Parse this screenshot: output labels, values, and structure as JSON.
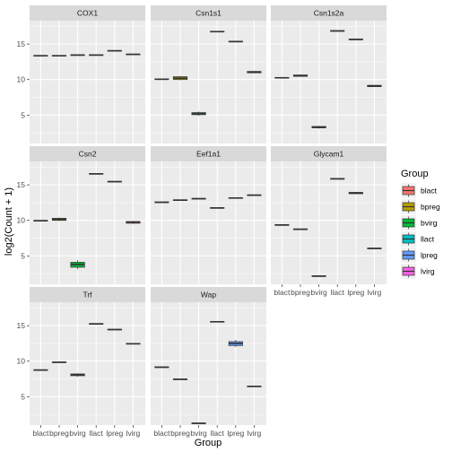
{
  "chart_data": {
    "type": "box",
    "facet": "gene",
    "xlabel": "Group",
    "ylabel": "log2(Count + 1)",
    "categories": [
      "blact",
      "bpreg",
      "bvirg",
      "llact",
      "lpreg",
      "lvirg"
    ],
    "yticks": [
      5,
      10,
      15
    ],
    "ylim": [
      1.0,
      18.3
    ],
    "grid": true,
    "legend": {
      "title": "Group",
      "position": "right",
      "items": [
        "blact",
        "bpreg",
        "bvirg",
        "llact",
        "lpreg",
        "lvirg"
      ]
    },
    "colors": {
      "blact": "#F8766D",
      "bpreg": "#B79F00",
      "bvirg": "#00BA38",
      "llact": "#00BFC4",
      "lpreg": "#619CFF",
      "lvirg": "#F564E3"
    },
    "panels": [
      {
        "name": "COX1",
        "boxes": [
          {
            "group": "blact",
            "min": 13.3,
            "q1": 13.3,
            "median": 13.35,
            "q3": 13.4,
            "max": 13.4
          },
          {
            "group": "bpreg",
            "min": 13.3,
            "q1": 13.3,
            "median": 13.35,
            "q3": 13.4,
            "max": 13.4
          },
          {
            "group": "bvirg",
            "min": 13.4,
            "q1": 13.4,
            "median": 13.45,
            "q3": 13.5,
            "max": 13.5
          },
          {
            "group": "llact",
            "min": 13.4,
            "q1": 13.4,
            "median": 13.45,
            "q3": 13.5,
            "max": 13.5
          },
          {
            "group": "lpreg",
            "min": 14.0,
            "q1": 14.0,
            "median": 14.05,
            "q3": 14.1,
            "max": 14.1
          },
          {
            "group": "lvirg",
            "min": 13.5,
            "q1": 13.5,
            "median": 13.55,
            "q3": 13.6,
            "max": 13.6
          }
        ]
      },
      {
        "name": "Csn1s1",
        "boxes": [
          {
            "group": "blact",
            "min": 10.0,
            "q1": 10.0,
            "median": 10.05,
            "q3": 10.1,
            "max": 10.1
          },
          {
            "group": "bpreg",
            "min": 9.9,
            "q1": 10.0,
            "median": 10.2,
            "q3": 10.4,
            "max": 10.5
          },
          {
            "group": "bvirg",
            "min": 4.9,
            "q1": 5.05,
            "median": 5.2,
            "q3": 5.35,
            "max": 5.5
          },
          {
            "group": "llact",
            "min": 16.7,
            "q1": 16.7,
            "median": 16.75,
            "q3": 16.8,
            "max": 16.8
          },
          {
            "group": "lpreg",
            "min": 15.3,
            "q1": 15.3,
            "median": 15.35,
            "q3": 15.4,
            "max": 15.4
          },
          {
            "group": "lvirg",
            "min": 10.9,
            "q1": 10.95,
            "median": 11.05,
            "q3": 11.15,
            "max": 11.2
          }
        ]
      },
      {
        "name": "Csn1s2a",
        "boxes": [
          {
            "group": "blact",
            "min": 10.2,
            "q1": 10.2,
            "median": 10.25,
            "q3": 10.3,
            "max": 10.3
          },
          {
            "group": "bpreg",
            "min": 10.4,
            "q1": 10.45,
            "median": 10.55,
            "q3": 10.65,
            "max": 10.7
          },
          {
            "group": "bvirg",
            "min": 3.1,
            "q1": 3.2,
            "median": 3.3,
            "q3": 3.4,
            "max": 3.5
          },
          {
            "group": "llact",
            "min": 16.8,
            "q1": 16.8,
            "median": 16.85,
            "q3": 16.9,
            "max": 16.9
          },
          {
            "group": "lpreg",
            "min": 15.6,
            "q1": 15.6,
            "median": 15.65,
            "q3": 15.7,
            "max": 15.7
          },
          {
            "group": "lvirg",
            "min": 9.0,
            "q1": 9.0,
            "median": 9.1,
            "q3": 9.2,
            "max": 9.2
          }
        ]
      },
      {
        "name": "Csn2",
        "boxes": [
          {
            "group": "blact",
            "min": 9.9,
            "q1": 9.9,
            "median": 9.95,
            "q3": 10.0,
            "max": 10.0
          },
          {
            "group": "bpreg",
            "min": 9.9,
            "q1": 10.0,
            "median": 10.15,
            "q3": 10.3,
            "max": 10.4
          },
          {
            "group": "bvirg",
            "min": 3.1,
            "q1": 3.4,
            "median": 3.8,
            "q3": 4.1,
            "max": 4.4
          },
          {
            "group": "llact",
            "min": 16.5,
            "q1": 16.5,
            "median": 16.55,
            "q3": 16.6,
            "max": 16.6
          },
          {
            "group": "lpreg",
            "min": 15.4,
            "q1": 15.4,
            "median": 15.45,
            "q3": 15.5,
            "max": 15.5
          },
          {
            "group": "lvirg",
            "min": 9.5,
            "q1": 9.6,
            "median": 9.7,
            "q3": 9.85,
            "max": 9.9
          }
        ]
      },
      {
        "name": "Eef1a1",
        "boxes": [
          {
            "group": "blact",
            "min": 12.5,
            "q1": 12.5,
            "median": 12.55,
            "q3": 12.6,
            "max": 12.6
          },
          {
            "group": "bpreg",
            "min": 12.8,
            "q1": 12.8,
            "median": 12.85,
            "q3": 12.9,
            "max": 12.9
          },
          {
            "group": "bvirg",
            "min": 13.0,
            "q1": 13.0,
            "median": 13.05,
            "q3": 13.1,
            "max": 13.1
          },
          {
            "group": "llact",
            "min": 11.7,
            "q1": 11.7,
            "median": 11.75,
            "q3": 11.8,
            "max": 11.8
          },
          {
            "group": "lpreg",
            "min": 13.1,
            "q1": 13.1,
            "median": 13.15,
            "q3": 13.2,
            "max": 13.2
          },
          {
            "group": "lvirg",
            "min": 13.5,
            "q1": 13.5,
            "median": 13.55,
            "q3": 13.6,
            "max": 13.6
          }
        ]
      },
      {
        "name": "Glycam1",
        "boxes": [
          {
            "group": "blact",
            "min": 9.3,
            "q1": 9.3,
            "median": 9.35,
            "q3": 9.4,
            "max": 9.4
          },
          {
            "group": "bpreg",
            "min": 8.7,
            "q1": 8.7,
            "median": 8.75,
            "q3": 8.8,
            "max": 8.8
          },
          {
            "group": "bvirg",
            "min": 2.1,
            "q1": 2.1,
            "median": 2.15,
            "q3": 2.2,
            "max": 2.2
          },
          {
            "group": "llact",
            "min": 15.8,
            "q1": 15.8,
            "median": 15.85,
            "q3": 15.9,
            "max": 15.9
          },
          {
            "group": "lpreg",
            "min": 13.7,
            "q1": 13.75,
            "median": 13.85,
            "q3": 13.95,
            "max": 14.0
          },
          {
            "group": "lvirg",
            "min": 6.0,
            "q1": 6.0,
            "median": 6.05,
            "q3": 6.1,
            "max": 6.1
          }
        ]
      },
      {
        "name": "Trf",
        "boxes": [
          {
            "group": "blact",
            "min": 8.7,
            "q1": 8.7,
            "median": 8.75,
            "q3": 8.8,
            "max": 8.8
          },
          {
            "group": "bpreg",
            "min": 9.8,
            "q1": 9.8,
            "median": 9.85,
            "q3": 9.9,
            "max": 9.9
          },
          {
            "group": "bvirg",
            "min": 7.8,
            "q1": 7.95,
            "median": 8.1,
            "q3": 8.2,
            "max": 8.3
          },
          {
            "group": "llact",
            "min": 15.2,
            "q1": 15.2,
            "median": 15.25,
            "q3": 15.3,
            "max": 15.3
          },
          {
            "group": "lpreg",
            "min": 14.4,
            "q1": 14.4,
            "median": 14.45,
            "q3": 14.5,
            "max": 14.5
          },
          {
            "group": "lvirg",
            "min": 12.4,
            "q1": 12.4,
            "median": 12.45,
            "q3": 12.5,
            "max": 12.5
          }
        ]
      },
      {
        "name": "Wap",
        "boxes": [
          {
            "group": "blact",
            "min": 9.1,
            "q1": 9.1,
            "median": 9.15,
            "q3": 9.2,
            "max": 9.2
          },
          {
            "group": "bpreg",
            "min": 7.4,
            "q1": 7.4,
            "median": 7.45,
            "q3": 7.5,
            "max": 7.5
          },
          {
            "group": "bvirg",
            "min": 1.2,
            "q1": 1.2,
            "median": 1.25,
            "q3": 1.3,
            "max": 1.3
          },
          {
            "group": "llact",
            "min": 15.5,
            "q1": 15.5,
            "median": 15.55,
            "q3": 15.6,
            "max": 15.6
          },
          {
            "group": "lpreg",
            "min": 12.0,
            "q1": 12.2,
            "median": 12.5,
            "q3": 12.75,
            "max": 13.0
          },
          {
            "group": "lvirg",
            "min": 6.4,
            "q1": 6.4,
            "median": 6.45,
            "q3": 6.5,
            "max": 6.5
          }
        ]
      }
    ]
  }
}
